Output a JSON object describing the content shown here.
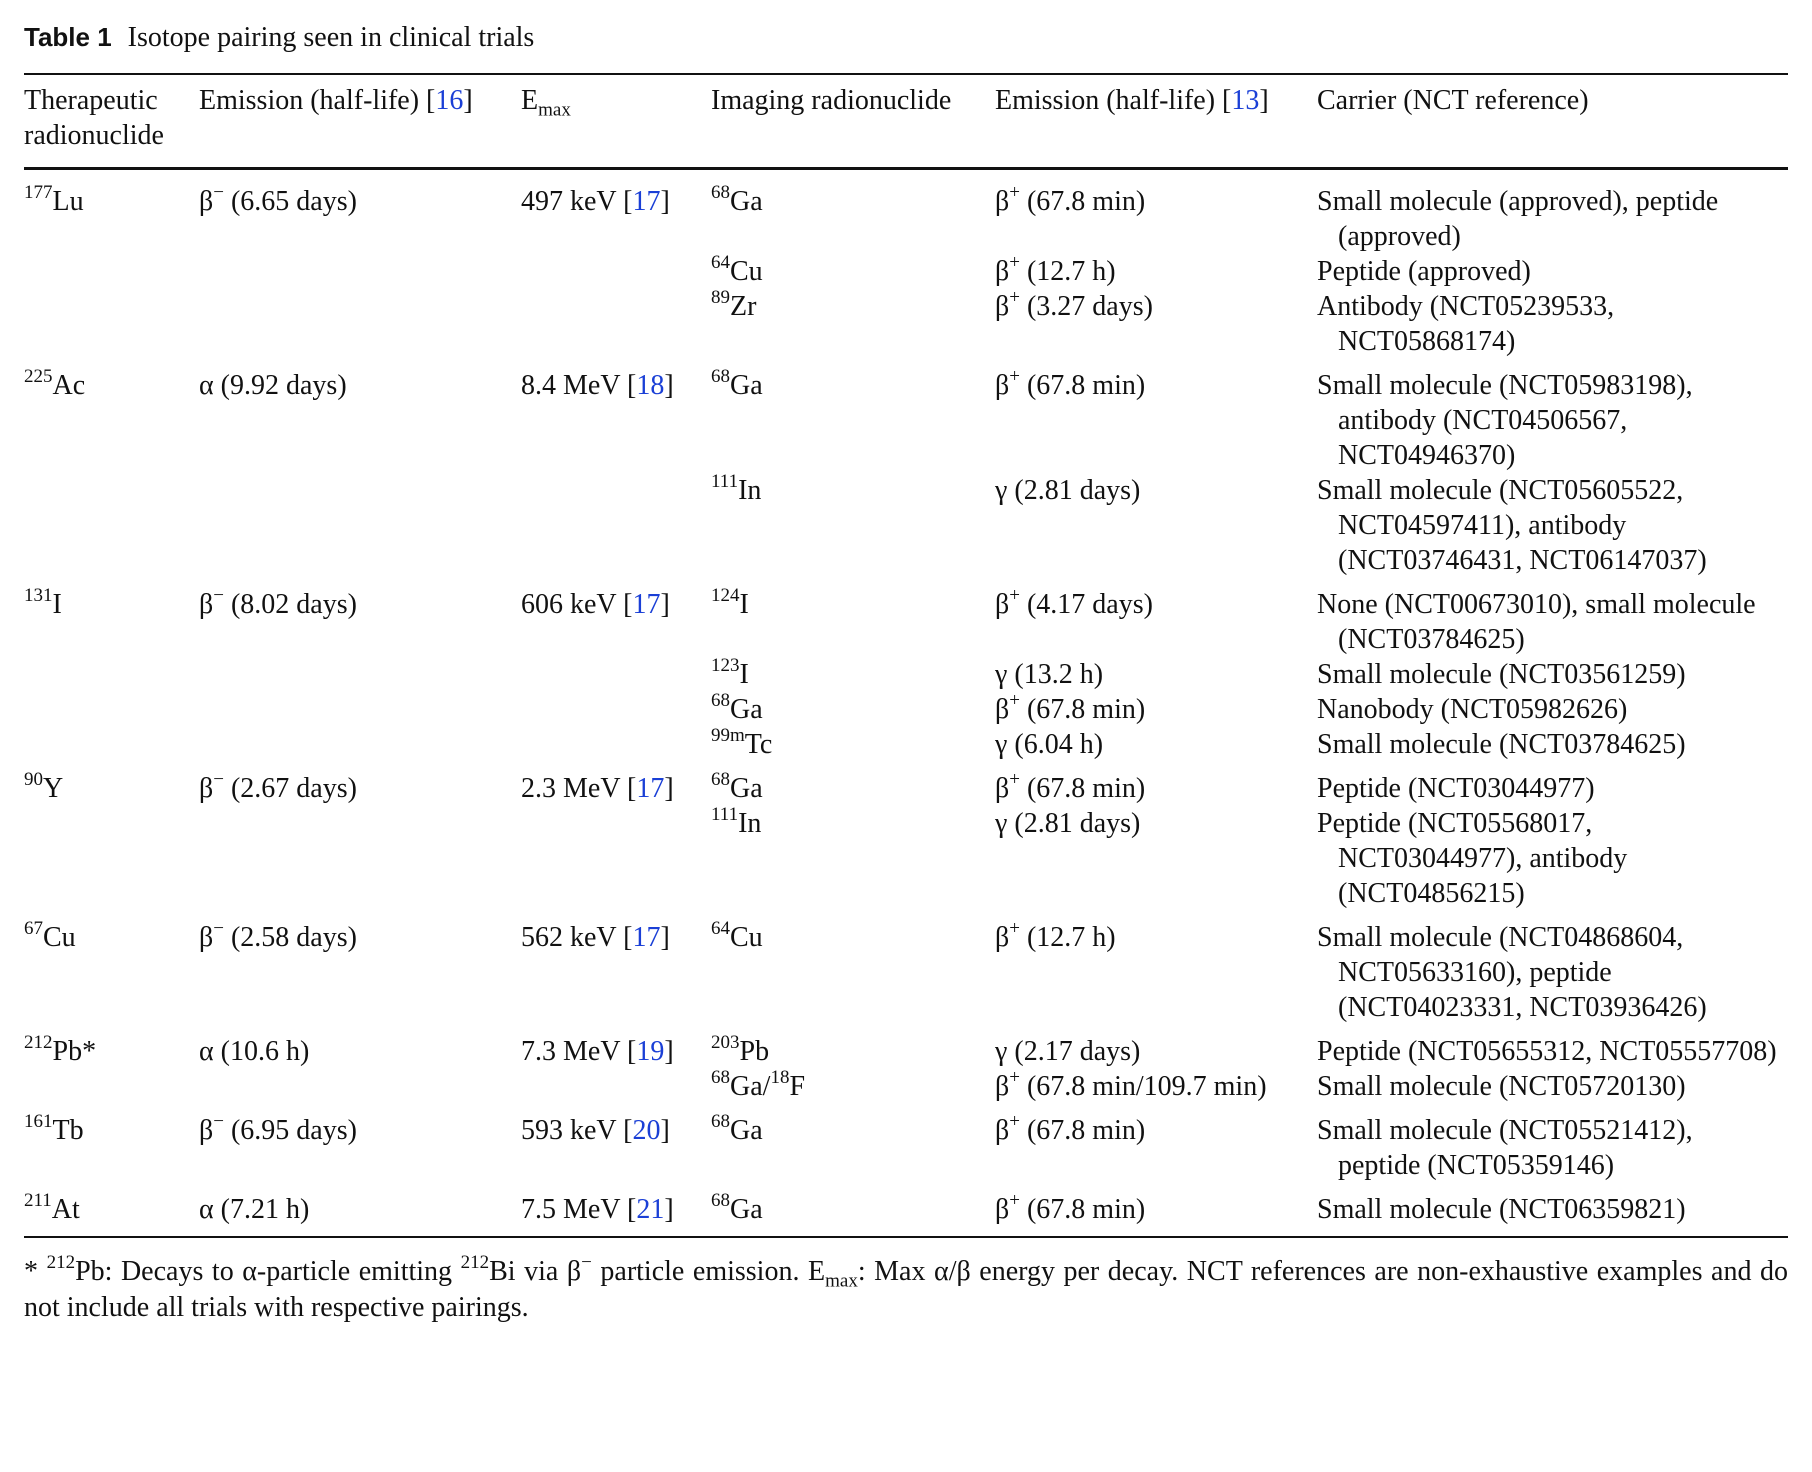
{
  "caption": {
    "label": "Table 1",
    "title": "Isotope pairing seen in clinical trials"
  },
  "headers": {
    "therapeutic": "Therapeutic radionuclide",
    "emission1": "Emission (half-life) [",
    "emission1_ref": "16",
    "emax_main": "E",
    "emax_sub": "max",
    "imaging": "Imaging radionuclide",
    "emission2": "Emission (half-life) [",
    "emission2_ref": "13",
    "carrier": "Carrier (NCT reference)"
  },
  "rows": [
    {
      "t_mass": "177",
      "t_sym": "Lu",
      "t_em": "β",
      "t_em_sup": "−",
      "t_hl": " (6.65 days)",
      "emax": "497 keV [",
      "emax_ref": "17",
      "i_mass": "68",
      "i_sym": "Ga",
      "i_em": "β",
      "i_em_sup": "+",
      "i_hl": " (67.8 min)",
      "carrier": "Small molecule (approved), peptide (approved)"
    },
    {
      "i_mass": "64",
      "i_sym": "Cu",
      "i_em": "β",
      "i_em_sup": "+",
      "i_hl": " (12.7 h)",
      "carrier": "Peptide (approved)"
    },
    {
      "i_mass": "89",
      "i_sym": "Zr",
      "i_em": "β",
      "i_em_sup": "+",
      "i_hl": " (3.27 days)",
      "carrier": "Antibody (NCT05239533, NCT05868174)"
    },
    {
      "t_mass": "225",
      "t_sym": "Ac",
      "t_em": "α",
      "t_em_sup": "",
      "t_hl": " (9.92 days)",
      "emax": "8.4 MeV [",
      "emax_ref": "18",
      "i_mass": "68",
      "i_sym": "Ga",
      "i_em": "β",
      "i_em_sup": "+",
      "i_hl": " (67.8 min)",
      "carrier": "Small molecule (NCT05983198), antibody (NCT04506567, NCT04946370)"
    },
    {
      "i_mass": "111",
      "i_sym": "In",
      "i_em": "γ",
      "i_em_sup": "",
      "i_hl": " (2.81 days)",
      "carrier": "Small molecule (NCT05605522, NCT04597411), antibody (NCT03746431, NCT06147037)"
    },
    {
      "t_mass": "131",
      "t_sym": "I",
      "t_em": "β",
      "t_em_sup": "−",
      "t_hl": " (8.02 days)",
      "emax": "606 keV [",
      "emax_ref": "17",
      "i_mass": "124",
      "i_sym": "I",
      "i_em": "β",
      "i_em_sup": "+",
      "i_hl": " (4.17 days)",
      "carrier": "None (NCT00673010), small molecule (NCT03784625)"
    },
    {
      "i_mass": "123",
      "i_sym": "I",
      "i_em": "γ",
      "i_em_sup": "",
      "i_hl": " (13.2 h)",
      "carrier": "Small molecule (NCT03561259)"
    },
    {
      "i_mass": "68",
      "i_sym": "Ga",
      "i_em": "β",
      "i_em_sup": "+",
      "i_hl": " (67.8 min)",
      "carrier": "Nanobody (NCT05982626)"
    },
    {
      "i_mass": "99m",
      "i_sym": "Tc",
      "i_em": "γ",
      "i_em_sup": "",
      "i_hl": " (6.04 h)",
      "carrier": "Small molecule (NCT03784625)"
    },
    {
      "t_mass": "90",
      "t_sym": "Y",
      "t_em": "β",
      "t_em_sup": "−",
      "t_hl": " (2.67 days)",
      "emax": "2.3 MeV [",
      "emax_ref": "17",
      "i_mass": "68",
      "i_sym": "Ga",
      "i_em": "β",
      "i_em_sup": "+",
      "i_hl": " (67.8 min)",
      "carrier": "Peptide (NCT03044977)"
    },
    {
      "i_mass": "111",
      "i_sym": "In",
      "i_em": "γ",
      "i_em_sup": "",
      "i_hl": " (2.81 days)",
      "carrier": "Peptide (NCT05568017, NCT03044977), antibody (NCT04856215)"
    },
    {
      "t_mass": "67",
      "t_sym": "Cu",
      "t_em": "β",
      "t_em_sup": "−",
      "t_hl": " (2.58 days)",
      "emax": "562 keV [",
      "emax_ref": "17",
      "i_mass": "64",
      "i_sym": "Cu",
      "i_em": "β",
      "i_em_sup": "+",
      "i_hl": " (12.7 h)",
      "carrier": "Small molecule (NCT04868604, NCT05633160), peptide (NCT04023331, NCT03936426)"
    },
    {
      "t_mass": "212",
      "t_sym": "Pb*",
      "t_em": "α",
      "t_em_sup": "",
      "t_hl": " (10.6 h)",
      "emax": "7.3 MeV [",
      "emax_ref": "19",
      "i_mass": "203",
      "i_sym": "Pb",
      "i_em": "γ",
      "i_em_sup": "",
      "i_hl": " (2.17 days)",
      "carrier": "Peptide (NCT05655312, NCT05557708)"
    },
    {
      "i_mass": "68",
      "i_sym": "Ga/",
      "i_mass2": "18",
      "i_sym2": "F",
      "i_em": "β",
      "i_em_sup": "+",
      "i_hl": " (67.8 min/109.7 min)",
      "carrier": "Small molecule (NCT05720130)"
    },
    {
      "t_mass": "161",
      "t_sym": "Tb",
      "t_em": "β",
      "t_em_sup": "−",
      "t_hl": " (6.95 days)",
      "emax": "593 keV [",
      "emax_ref": "20",
      "i_mass": "68",
      "i_sym": "Ga",
      "i_em": "β",
      "i_em_sup": "+",
      "i_hl": " (67.8 min)",
      "carrier": "Small molecule (NCT05521412), peptide (NCT05359146)"
    },
    {
      "t_mass": "211",
      "t_sym": "At",
      "t_em": "α",
      "t_em_sup": "",
      "t_hl": " (7.21 h)",
      "emax": "7.5 MeV [",
      "emax_ref": "21",
      "i_mass": "68",
      "i_sym": "Ga",
      "i_em": "β",
      "i_em_sup": "+",
      "i_hl": " (67.8 min)",
      "carrier": "Small molecule (NCT06359821)"
    }
  ],
  "footnote": {
    "star": "* ",
    "pb_mass": "212",
    "p1": "Pb: Decays to α-particle emitting ",
    "bi_mass": "212",
    "p2": "Bi via β",
    "p2_sup": "−",
    "p3": " particle emission. E",
    "p3_sub": "max",
    "p4": ": Max α/β energy per decay. NCT references are non-exhaustive examples and do not include all trials with respective pairings."
  }
}
